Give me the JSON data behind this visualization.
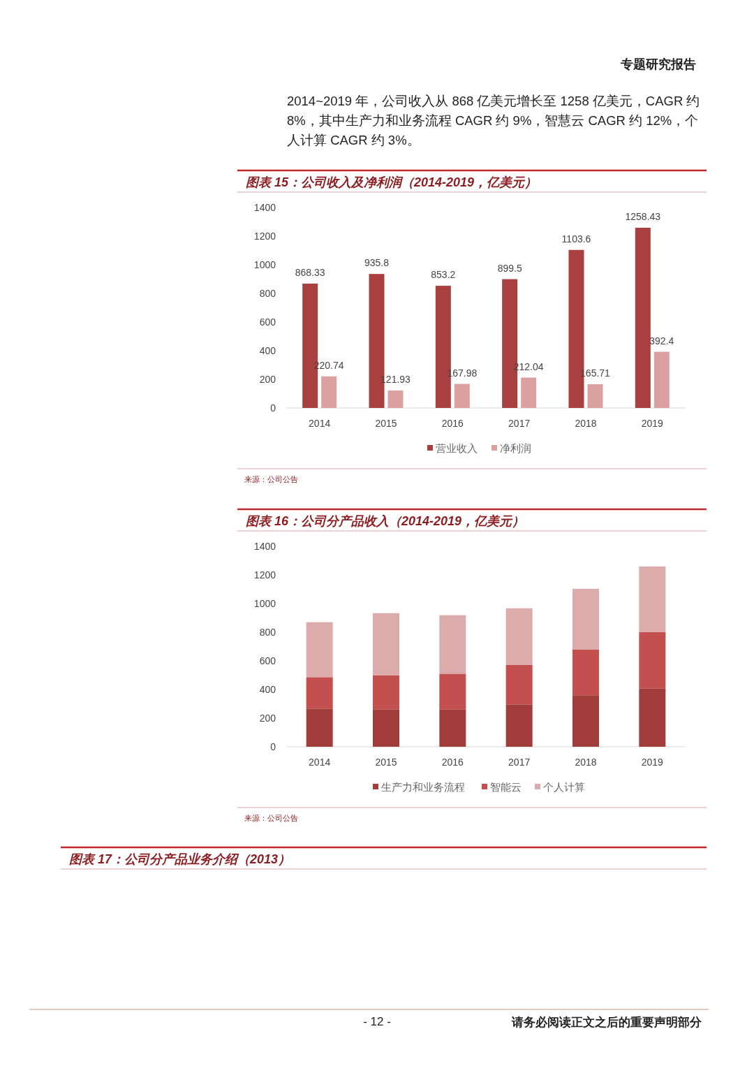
{
  "chart_data": [
    {
      "type": "other",
      "annotations": [
        "专题研究报告",
        "2014~2019 年，公司收入从 868 亿美元增长至 1258 亿美元，CAGR 约 8%，其中生产力和业务流程 CAGR 约 9%，智慧云 CAGR 约 12%，个人计算 CAGR 约 3%。"
      ]
    },
    {
      "type": "bar",
      "title": "图表 15：公司收入及净利润（2014-2019，亿美元）",
      "categories": [
        "2014",
        "2015",
        "2016",
        "2017",
        "2018",
        "2019"
      ],
      "series": [
        {
          "name": "营业收入",
          "color": "#a8403f",
          "values": [
            868.33,
            935.8,
            853.2,
            899.5,
            1103.6,
            1258.43
          ]
        },
        {
          "name": "净利润",
          "color": "#dba1a0",
          "values": [
            220.74,
            121.93,
            167.98,
            212.04,
            165.71,
            392.4
          ]
        }
      ],
      "ylim": [
        0,
        1400
      ],
      "yticks": [
        0,
        200,
        400,
        600,
        800,
        1000,
        1200,
        1400
      ],
      "data_labels": true,
      "legend": "bottom",
      "annotations": [
        "来源：公司公告"
      ]
    },
    {
      "type": "bar",
      "stacked": true,
      "title": "图表 16：公司分产品收入（2014-2019，亿美元）",
      "categories": [
        "2014",
        "2015",
        "2016",
        "2017",
        "2018",
        "2019"
      ],
      "series": [
        {
          "name": "生产力和业务流程",
          "color": "#a13d3b",
          "values": [
            267,
            262,
            262,
            296,
            360,
            408
          ]
        },
        {
          "name": "智能云",
          "color": "#c44f4f",
          "values": [
            219,
            238,
            248,
            277,
            320,
            394
          ]
        },
        {
          "name": "个人计算",
          "color": "#dcabab",
          "values": [
            384,
            433,
            409,
            394,
            423,
            457
          ]
        }
      ],
      "ylim": [
        0,
        1400
      ],
      "yticks": [
        0,
        200,
        400,
        600,
        800,
        1000,
        1200,
        1400
      ],
      "legend": "bottom",
      "annotations": [
        "来源：公司公告"
      ]
    },
    {
      "type": "other",
      "title": "图表 17：公司分产品业务介绍（2013）",
      "annotations": [
        "- 12 -",
        "请务必阅读正文之后的重要声明部分"
      ]
    }
  ]
}
